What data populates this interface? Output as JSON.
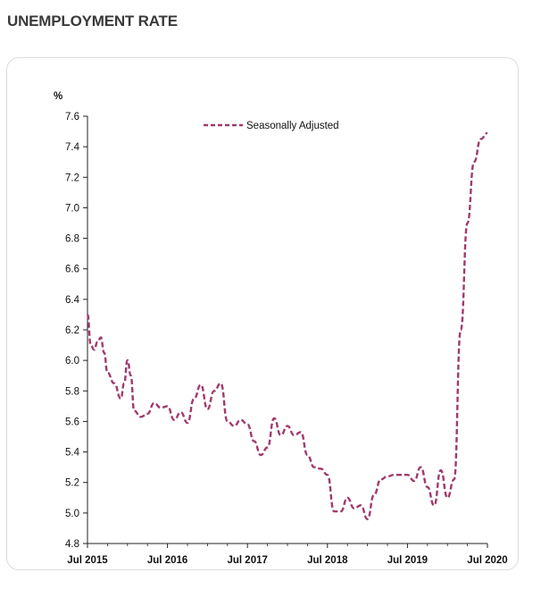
{
  "page": {
    "title": "UNEMPLOYMENT RATE"
  },
  "colors": {
    "series": "#a03a6c",
    "axis": "#222222",
    "title": "#3a3a3a"
  },
  "chart_data": {
    "type": "line",
    "title": "",
    "ylabel": "%",
    "xlabel": "",
    "ylim": [
      4.8,
      7.6
    ],
    "yticks": [
      4.8,
      5.0,
      5.2,
      5.4,
      5.6,
      5.8,
      6.0,
      6.2,
      6.4,
      6.6,
      6.8,
      7.0,
      7.2,
      7.4,
      7.6
    ],
    "ytick_labels": [
      "4.8",
      "5.0",
      "5.2",
      "5.4",
      "5.6",
      "5.8",
      "6.0",
      "6.2",
      "6.4",
      "6.6",
      "6.8",
      "7.0",
      "7.2",
      "7.4",
      "7.6"
    ],
    "xlim": [
      0,
      60
    ],
    "x_unit": "months since Jul 2015",
    "xticks": [
      0,
      12,
      24,
      36,
      48,
      60
    ],
    "xtick_labels": [
      "Jul 2015",
      "Jul 2016",
      "Jul 2017",
      "Jul 2018",
      "Jul 2019",
      "Jul 2020"
    ],
    "grid": false,
    "legend": {
      "position": "top-center",
      "entries": [
        "Seasonally Adjusted"
      ]
    },
    "series": [
      {
        "name": "Seasonally Adjusted",
        "style": "dashed",
        "x": [
          0,
          0.5,
          1,
          1.5,
          2,
          2.5,
          3,
          4,
          5,
          5.5,
          6,
          6.5,
          7,
          8,
          9,
          10,
          11,
          12,
          13,
          14,
          15,
          16,
          17,
          18,
          19,
          20,
          21,
          22,
          23,
          24,
          25,
          26,
          27,
          28,
          29,
          30,
          31,
          32,
          33,
          34,
          35,
          36,
          37,
          38,
          39,
          40,
          41,
          42,
          43,
          44,
          45,
          46,
          47,
          48,
          49,
          50,
          51,
          52,
          53,
          54,
          55,
          56,
          57,
          58,
          59,
          60
        ],
        "y": [
          6.3,
          6.1,
          6.07,
          6.12,
          6.15,
          6.05,
          5.92,
          5.85,
          5.75,
          5.85,
          6.0,
          5.9,
          5.67,
          5.63,
          5.65,
          5.72,
          5.69,
          5.7,
          5.61,
          5.66,
          5.59,
          5.75,
          5.84,
          5.68,
          5.8,
          5.85,
          5.6,
          5.57,
          5.61,
          5.58,
          5.47,
          5.38,
          5.43,
          5.62,
          5.51,
          5.57,
          5.51,
          5.53,
          5.38,
          5.3,
          5.29,
          5.25,
          5.01,
          5.01,
          5.1,
          5.03,
          5.05,
          4.96,
          5.12,
          5.22,
          5.24,
          5.25,
          5.25,
          5.25,
          5.21,
          5.3,
          5.17,
          5.05,
          5.28,
          5.1,
          5.22,
          6.2,
          6.9,
          7.3,
          7.45,
          7.49
        ]
      }
    ]
  }
}
